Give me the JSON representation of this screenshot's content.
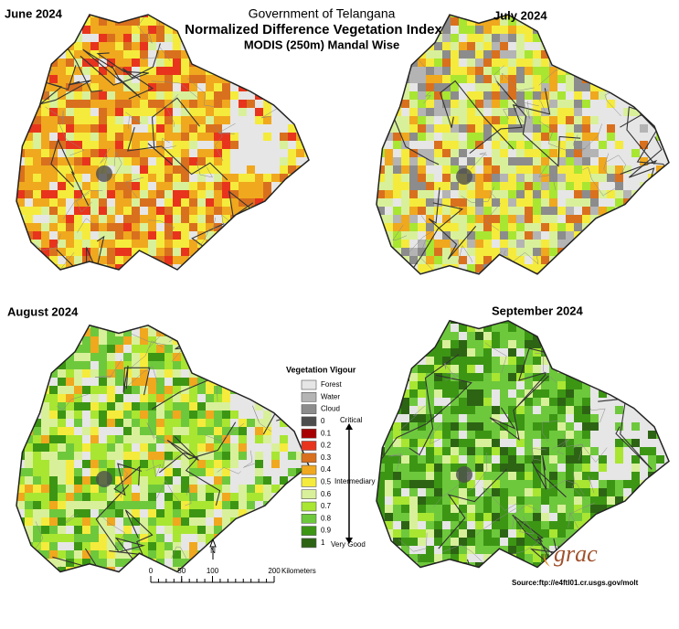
{
  "header": {
    "line1": "Government of Telangana",
    "title": "Normalized Difference Vegetation Index",
    "subtitle": "MODIS (250m) Mandal Wise"
  },
  "maps": [
    {
      "label": "June 2024"
    },
    {
      "label": "July 2024"
    },
    {
      "label": "August 2024"
    },
    {
      "label": "September 2024"
    }
  ],
  "legend": {
    "title": "Vegetation Vigour",
    "items": [
      {
        "label": "Forest",
        "color": "#e6e6e6"
      },
      {
        "label": "Water",
        "color": "#b4b4b4"
      },
      {
        "label": "Cloud",
        "color": "#8c8c8c"
      },
      {
        "label": "0",
        "color": "#4d4d4d"
      },
      {
        "label": "0.1",
        "color": "#a80000"
      },
      {
        "label": "0.2",
        "color": "#e8341c"
      },
      {
        "label": "0.3",
        "color": "#d9701e"
      },
      {
        "label": "0.4",
        "color": "#f0a81e"
      },
      {
        "label": "0.5",
        "color": "#f5eb3c"
      },
      {
        "label": "0.6",
        "color": "#d9f09a"
      },
      {
        "label": "0.7",
        "color": "#a8e632"
      },
      {
        "label": "0.8",
        "color": "#6ec83c"
      },
      {
        "label": "0.9",
        "color": "#3c9614"
      },
      {
        "label": "1",
        "color": "#2d6414"
      }
    ],
    "scale_notes": [
      "Critical",
      "Intermediary",
      "Very Good"
    ]
  },
  "scale_bar": {
    "ticks": [
      0,
      50,
      100,
      200
    ],
    "unit": "Kilometers"
  },
  "north": "N",
  "logo": "grac",
  "source": "Source:ftp://e4ftl01.cr.usgs.gov/molt"
}
